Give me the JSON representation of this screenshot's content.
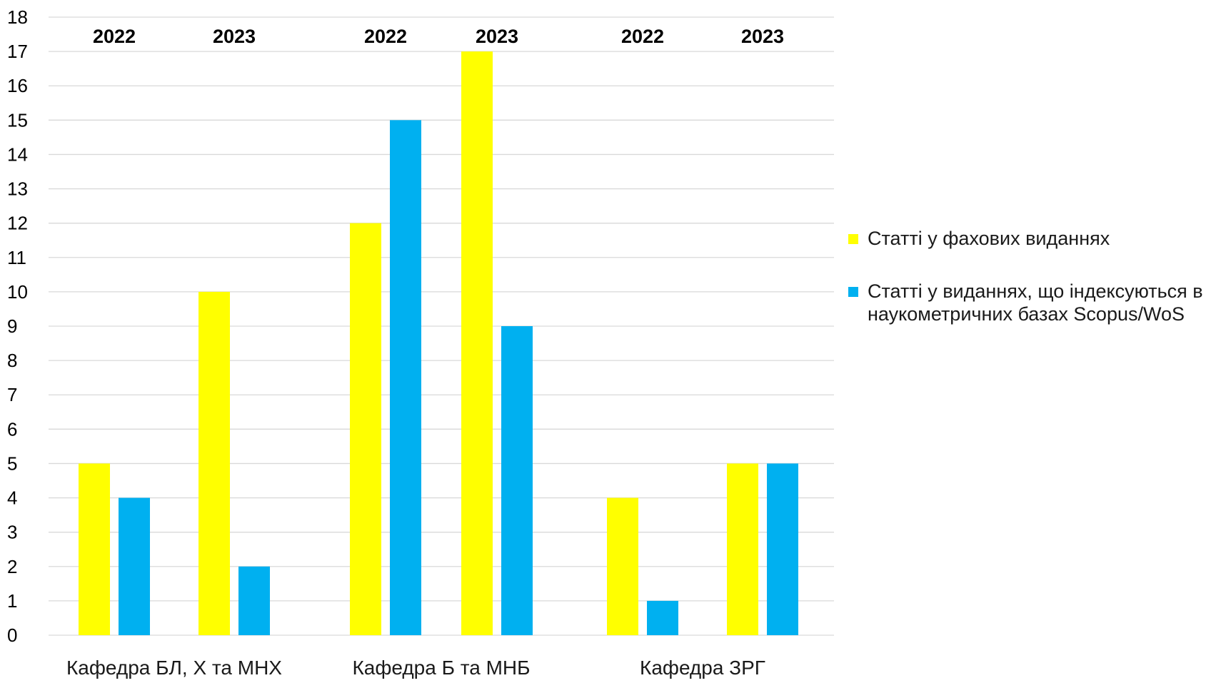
{
  "chart_data": {
    "type": "bar",
    "title": "",
    "xlabel": "",
    "ylabel": "",
    "ylim": [
      0,
      18
    ],
    "yticks": [
      "0",
      "1",
      "2",
      "3",
      "4",
      "5",
      "6",
      "7",
      "8",
      "9",
      "10",
      "11",
      "12",
      "13",
      "14",
      "15",
      "16",
      "17",
      "18"
    ],
    "grid": true,
    "legend_position": "right",
    "groups": [
      {
        "label": "Кафедра БЛ, Х та МНХ",
        "subgroups": [
          {
            "year": "2022",
            "values": [
              5,
              4
            ]
          },
          {
            "year": "2023",
            "values": [
              10,
              2
            ]
          }
        ]
      },
      {
        "label": "Кафедра Б та МНБ",
        "subgroups": [
          {
            "year": "2022",
            "values": [
              12,
              15
            ]
          },
          {
            "year": "2023",
            "values": [
              17,
              9
            ]
          }
        ]
      },
      {
        "label": "Кафедра ЗРГ",
        "subgroups": [
          {
            "year": "2022",
            "values": [
              4,
              1
            ]
          },
          {
            "year": "2023",
            "values": [
              5,
              5
            ]
          }
        ]
      }
    ],
    "series": [
      {
        "name": "Статті у фахових виданнях",
        "color": "#FFFF00"
      },
      {
        "name": "Статті у виданнях, що індексуються в наукометричних базах Scopus/WoS",
        "color": "#00B0F0"
      }
    ]
  },
  "legend": {
    "item1": "Статті у фахових виданнях",
    "item2": "Статті у виданнях, що індексуються в наукометричних базах Scopus/WoS"
  },
  "colors": {
    "grid": "#D9D9D9",
    "axis_text": "#000000"
  }
}
